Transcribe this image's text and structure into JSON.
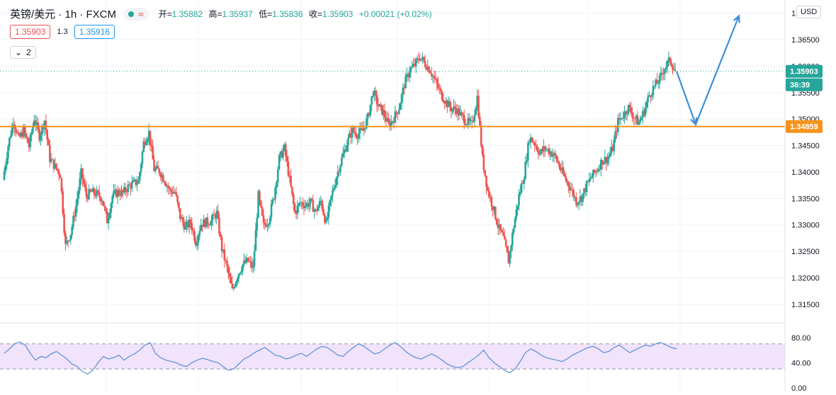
{
  "legend": {
    "symbol": "英镑/美元 · 1h · FXCM",
    "open_label": "开=",
    "open": "1.35882",
    "high_label": "高=",
    "high": "1.35937",
    "low_label": "低=",
    "low": "1.35836",
    "close_label": "收=",
    "close": "1.35903",
    "change": "+0.00021 (+0.02%)",
    "indicator_icon": "wave-icon"
  },
  "quote": {
    "sell": "1.35903",
    "spread": "1.3",
    "buy": "1.35916"
  },
  "indicators_collapsed": {
    "icon": "chevron-down-icon",
    "count": "2"
  },
  "currency_label": "USD",
  "colors": {
    "up": "#26a69a",
    "down": "#ef5350",
    "level": "#f7941d",
    "arrow": "#3d8fd6",
    "rsi_line": "#5b8fd4",
    "rsi_band": "#f0e3fb"
  },
  "chart_data": [
    {
      "type": "candlestick",
      "ylim": [
        1.3115,
        1.3725
      ],
      "y_ticks": [
        "1.37000",
        "1.36500",
        "1.36000",
        "1.35500",
        "1.35000",
        "1.34500",
        "1.34000",
        "1.33500",
        "1.33000",
        "1.32500",
        "1.32000",
        "1.31500"
      ],
      "y_tick_values": [
        1.37,
        1.365,
        1.36,
        1.355,
        1.35,
        1.345,
        1.34,
        1.335,
        1.33,
        1.325,
        1.32,
        1.315
      ],
      "last_price": 1.35903,
      "last_price_label": "1.35903",
      "countdown_label": "36:39",
      "horizontal_level": 1.34859,
      "horizontal_level_label": "1.34859",
      "projection_arrow": [
        1.359,
        1.349,
        1.3695
      ],
      "price_path": [
        1.3385,
        1.345,
        1.3498,
        1.3462,
        1.3478,
        1.3448,
        1.3502,
        1.3468,
        1.3498,
        1.3425,
        1.341,
        1.3395,
        1.326,
        1.3285,
        1.3335,
        1.3398,
        1.3355,
        1.3362,
        1.3358,
        1.335,
        1.3308,
        1.3355,
        1.3362,
        1.336,
        1.3372,
        1.3378,
        1.3382,
        1.3455,
        1.3475,
        1.3405,
        1.3402,
        1.3385,
        1.3365,
        1.3362,
        1.3315,
        1.3295,
        1.3305,
        1.3268,
        1.3302,
        1.3305,
        1.3308,
        1.3322,
        1.3255,
        1.3218,
        1.3175,
        1.3205,
        1.3225,
        1.3232,
        1.3218,
        1.3355,
        1.3298,
        1.331,
        1.3355,
        1.3425,
        1.3445,
        1.3385,
        1.3322,
        1.3342,
        1.3338,
        1.3342,
        1.3325,
        1.3345,
        1.3302,
        1.3352,
        1.3392,
        1.3425,
        1.3455,
        1.3478,
        1.3472,
        1.3478,
        1.3502,
        1.3552,
        1.3525,
        1.3512,
        1.3488,
        1.3502,
        1.3522,
        1.3565,
        1.3592,
        1.3602,
        1.3618,
        1.3605,
        1.3592,
        1.357,
        1.3548,
        1.3532,
        1.352,
        1.3518,
        1.3505,
        1.3495,
        1.3488,
        1.3542,
        1.3425,
        1.3365,
        1.3335,
        1.3298,
        1.3275,
        1.3232,
        1.3298,
        1.3355,
        1.3395,
        1.3465,
        1.3455,
        1.3435,
        1.3445,
        1.3438,
        1.3428,
        1.3405,
        1.3385,
        1.3368,
        1.3345,
        1.3352,
        1.3375,
        1.3392,
        1.3405,
        1.3422,
        1.3425,
        1.3445,
        1.3495,
        1.3508,
        1.3522,
        1.3505,
        1.3492,
        1.3515,
        1.3545,
        1.3562,
        1.3575,
        1.3598,
        1.3612,
        1.359
      ]
    },
    {
      "type": "line",
      "name": "RSI",
      "ylim": [
        0,
        100
      ],
      "band": [
        30,
        70
      ],
      "y_ticks": [
        "80.00",
        "40.00",
        "0.00"
      ],
      "y_tick_values": [
        80,
        40,
        0
      ],
      "values": [
        55,
        62,
        70,
        73,
        68,
        55,
        44,
        50,
        48,
        54,
        58,
        52,
        46,
        38,
        34,
        26,
        22,
        28,
        40,
        50,
        46,
        48,
        52,
        44,
        50,
        54,
        60,
        68,
        72,
        55,
        48,
        44,
        42,
        40,
        36,
        34,
        40,
        44,
        47,
        45,
        42,
        40,
        34,
        28,
        30,
        38,
        46,
        50,
        56,
        60,
        64,
        58,
        52,
        50,
        46,
        48,
        52,
        55,
        50,
        56,
        62,
        66,
        64,
        58,
        52,
        50,
        58,
        64,
        70,
        66,
        60,
        54,
        56,
        62,
        68,
        72,
        66,
        58,
        52,
        48,
        46,
        50,
        54,
        50,
        44,
        38,
        34,
        32,
        34,
        40,
        46,
        52,
        60,
        48,
        40,
        34,
        28,
        24,
        30,
        42,
        56,
        62,
        58,
        52,
        48,
        46,
        44,
        42,
        46,
        52,
        56,
        60,
        64,
        66,
        62,
        56,
        58,
        64,
        68,
        62,
        56,
        60,
        64,
        68,
        66,
        70,
        72,
        68,
        64,
        62
      ]
    }
  ]
}
